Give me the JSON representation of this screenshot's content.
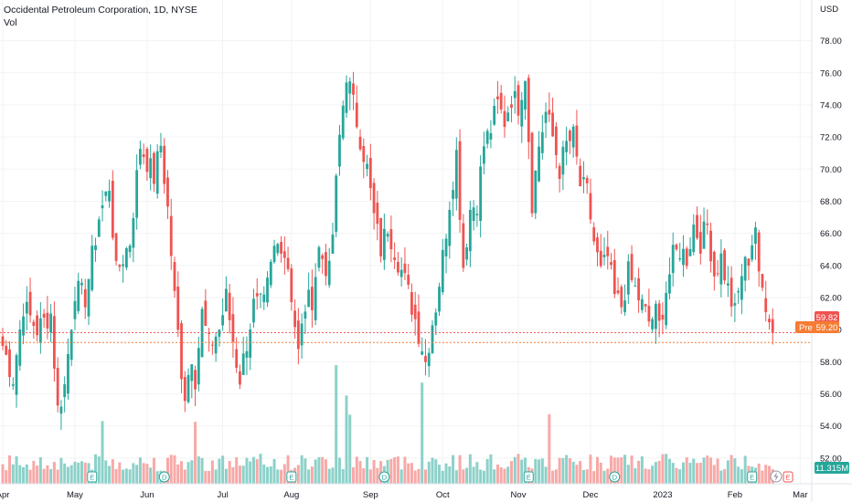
{
  "header": {
    "symbol_line": "Occidental Petroleum Corporation, 1D, NYSE",
    "volume_label": "Vol",
    "currency": "USD"
  },
  "chart_data": {
    "type": "candlestick",
    "title": "Occidental Petroleum Corporation, 1D, NYSE",
    "ylabel": "USD",
    "ylim": [
      50.4,
      79.4
    ],
    "yticks": [
      "52.00",
      "54.00",
      "56.00",
      "58.00",
      "60.00",
      "62.00",
      "64.00",
      "66.00",
      "68.00",
      "70.00",
      "72.00",
      "74.00",
      "76.00",
      "78.00"
    ],
    "x_ticks": [
      {
        "label": "Apr",
        "index": 0
      },
      {
        "label": "May",
        "index": 21
      },
      {
        "label": "Jun",
        "index": 42
      },
      {
        "label": "Jul",
        "index": 64
      },
      {
        "label": "Aug",
        "index": 84
      },
      {
        "label": "Sep",
        "index": 107
      },
      {
        "label": "Oct",
        "index": 128
      },
      {
        "label": "Nov",
        "index": 150
      },
      {
        "label": "Dec",
        "index": 171
      },
      {
        "label": "2023",
        "index": 192
      },
      {
        "label": "Feb",
        "index": 213
      },
      {
        "label": "Mar",
        "index": 232
      }
    ],
    "anchors": [
      [
        0,
        59.0
      ],
      [
        3,
        57.0
      ],
      [
        6,
        61.5
      ],
      [
        10,
        60.0
      ],
      [
        14,
        61.0
      ],
      [
        16,
        55.0
      ],
      [
        18,
        56.5
      ],
      [
        21,
        62.5
      ],
      [
        24,
        62.0
      ],
      [
        28,
        67.0
      ],
      [
        31,
        69.0
      ],
      [
        33,
        63.5
      ],
      [
        37,
        65.5
      ],
      [
        40,
        71.5
      ],
      [
        42,
        70.5
      ],
      [
        44,
        69.5
      ],
      [
        46,
        71.5
      ],
      [
        48,
        67.5
      ],
      [
        50,
        62.0
      ],
      [
        52,
        57.5
      ],
      [
        53,
        56.0
      ],
      [
        55,
        58.5
      ],
      [
        56,
        57.0
      ],
      [
        58,
        61.0
      ],
      [
        60,
        59.0
      ],
      [
        63,
        60.0
      ],
      [
        65,
        62.0
      ],
      [
        68,
        58.0
      ],
      [
        69,
        57.0
      ],
      [
        73,
        61.5
      ],
      [
        76,
        61.5
      ],
      [
        79,
        65.0
      ],
      [
        81,
        65.5
      ],
      [
        83,
        64.0
      ],
      [
        86,
        58.5
      ],
      [
        88,
        61.5
      ],
      [
        90,
        62.0
      ],
      [
        92,
        65.0
      ],
      [
        94,
        64.0
      ],
      [
        95,
        63.5
      ],
      [
        96,
        66.0
      ],
      [
        98,
        72.0
      ],
      [
        100,
        76.0
      ],
      [
        102,
        74.0
      ],
      [
        104,
        72.0
      ],
      [
        106,
        70.0
      ],
      [
        108,
        67.0
      ],
      [
        110,
        65.0
      ],
      [
        112,
        66.5
      ],
      [
        114,
        65.0
      ],
      [
        117,
        63.0
      ],
      [
        119,
        61.5
      ],
      [
        122,
        59.0
      ],
      [
        123,
        58.0
      ],
      [
        125,
        60.5
      ],
      [
        126,
        61.5
      ],
      [
        128,
        64.5
      ],
      [
        130,
        68.0
      ],
      [
        132,
        71.0
      ],
      [
        134,
        64.0
      ],
      [
        136,
        67.5
      ],
      [
        138,
        68.0
      ],
      [
        140,
        71.5
      ],
      [
        142,
        72.5
      ],
      [
        144,
        74.0
      ],
      [
        146,
        73.0
      ],
      [
        148,
        74.5
      ],
      [
        150,
        74.0
      ],
      [
        152,
        76.0
      ],
      [
        154,
        68.0
      ],
      [
        156,
        71.5
      ],
      [
        158,
        73.5
      ],
      [
        160,
        72.0
      ],
      [
        162,
        70.0
      ],
      [
        164,
        71.5
      ],
      [
        166,
        72.0
      ],
      [
        168,
        69.0
      ],
      [
        170,
        68.5
      ],
      [
        172,
        65.5
      ],
      [
        174,
        63.5
      ],
      [
        176,
        64.5
      ],
      [
        178,
        62.0
      ],
      [
        180,
        61.5
      ],
      [
        182,
        63.5
      ],
      [
        184,
        62.5
      ],
      [
        186,
        61.5
      ],
      [
        188,
        60.5
      ],
      [
        190,
        61.0
      ],
      [
        191,
        60.2
      ],
      [
        193,
        62.5
      ],
      [
        195,
        64.5
      ],
      [
        197,
        65.0
      ],
      [
        199,
        64.5
      ],
      [
        201,
        66.5
      ],
      [
        203,
        65.5
      ],
      [
        205,
        66.5
      ],
      [
        207,
        63.5
      ],
      [
        209,
        64.5
      ],
      [
        211,
        62.5
      ],
      [
        213,
        61.0
      ],
      [
        215,
        63.5
      ],
      [
        217,
        64.5
      ],
      [
        219,
        66.5
      ],
      [
        220,
        63.0
      ],
      [
        221,
        62.5
      ],
      [
        223,
        61.0
      ],
      [
        224,
        59.8
      ]
    ],
    "volume_axis_label": "11.315M",
    "last_close": 59.82,
    "last_close_label": "59.82",
    "premarket_label": "Pre",
    "premarket_price": 59.2,
    "premarket_price_label": "59.20",
    "event_markers": [
      {
        "index": 26,
        "label": "E"
      },
      {
        "index": 47,
        "label": "D"
      },
      {
        "index": 84,
        "label": "E"
      },
      {
        "index": 111,
        "label": "D"
      },
      {
        "index": 153,
        "label": "E"
      },
      {
        "index": 178,
        "label": "D"
      },
      {
        "index": 218,
        "label": "E"
      }
    ],
    "colors": {
      "up": "#26a69a",
      "down": "#ef5350",
      "up_volume": "#8cd1c9",
      "down_volume": "#f7a9a7",
      "last_price": "#ef5350",
      "premarket": "#f57c33",
      "grid": "#f2f3f5",
      "axis_text": "#131722",
      "tick_text": "#787b86"
    }
  }
}
